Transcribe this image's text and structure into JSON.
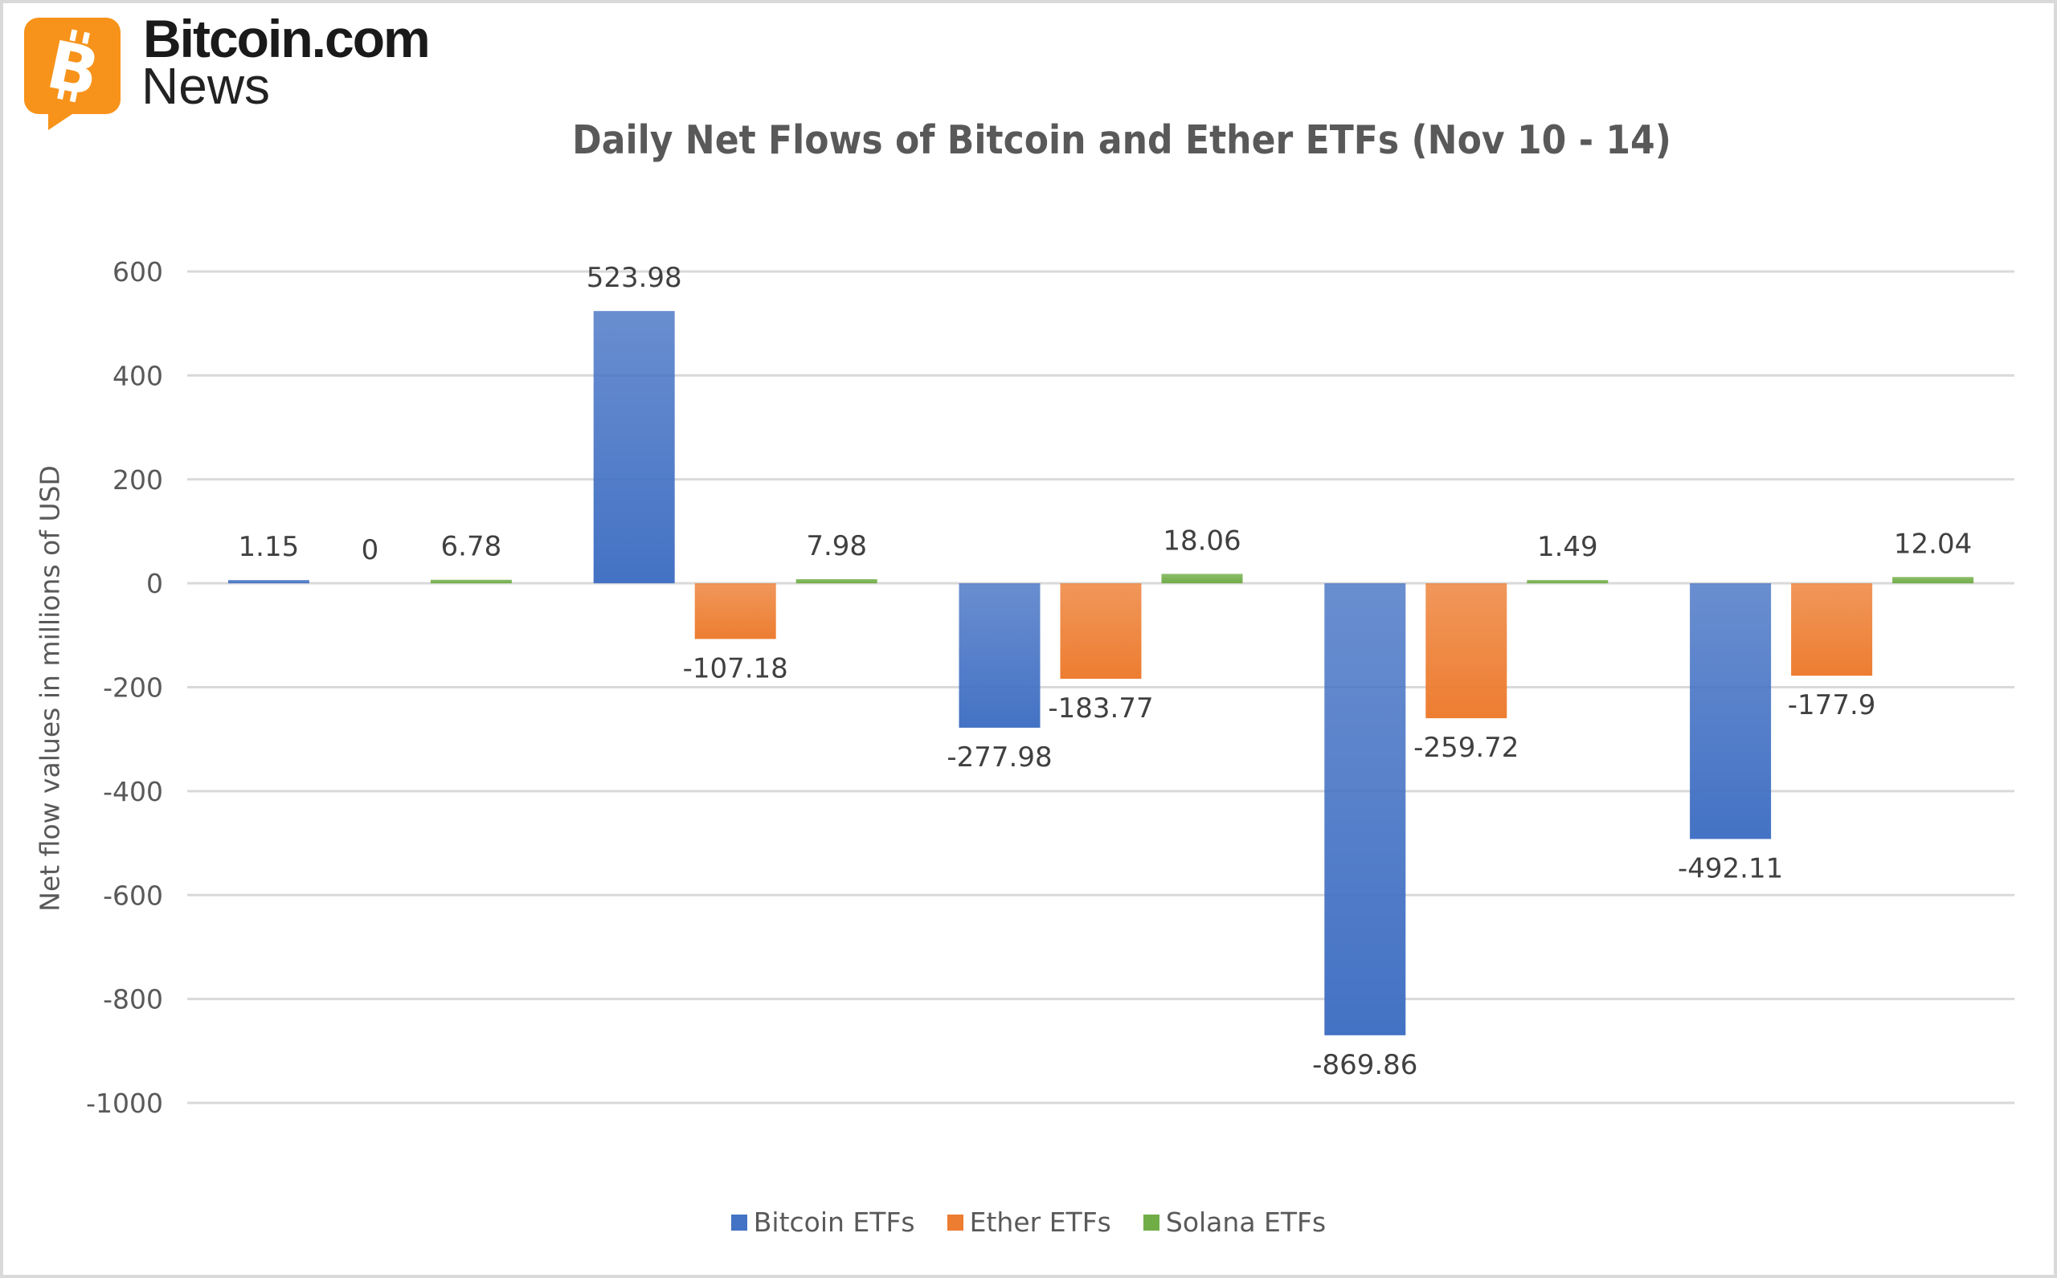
{
  "logo": {
    "line1": "Bitcoin.com",
    "line2": "News",
    "color": "#F7931A"
  },
  "chart_data": {
    "type": "bar",
    "title": "Daily Net Flows of Bitcoin and Ether ETFs (Nov 10 - 14)",
    "xlabel": "",
    "ylabel": "Net flow values in millions of USD",
    "ylim": [
      -1000,
      600
    ],
    "yticks": [
      600,
      400,
      200,
      0,
      -200,
      -400,
      -600,
      -800,
      -1000
    ],
    "grid": true,
    "legend_position": "bottom",
    "categories": [
      "",
      "",
      "",
      "",
      ""
    ],
    "series": [
      {
        "name": "Bitcoin ETFs",
        "color": "#4472C4",
        "values": [
          1.15,
          523.98,
          -277.98,
          -869.86,
          -492.11
        ],
        "labels": [
          "1.15",
          "523.98",
          "-277.98",
          "-869.86",
          "-492.11"
        ]
      },
      {
        "name": "Ether ETFs",
        "color": "#ED7D31",
        "values": [
          0,
          -107.18,
          -183.77,
          -259.72,
          -177.9
        ],
        "labels": [
          "0",
          "-107.18",
          "-183.77",
          "-259.72",
          "-177.9"
        ]
      },
      {
        "name": "Solana ETFs",
        "color": "#70AD47",
        "values": [
          6.78,
          7.98,
          18.06,
          1.49,
          12.04
        ],
        "labels": [
          "6.78",
          "7.98",
          "18.06",
          "1.49",
          "12.04"
        ]
      }
    ]
  }
}
